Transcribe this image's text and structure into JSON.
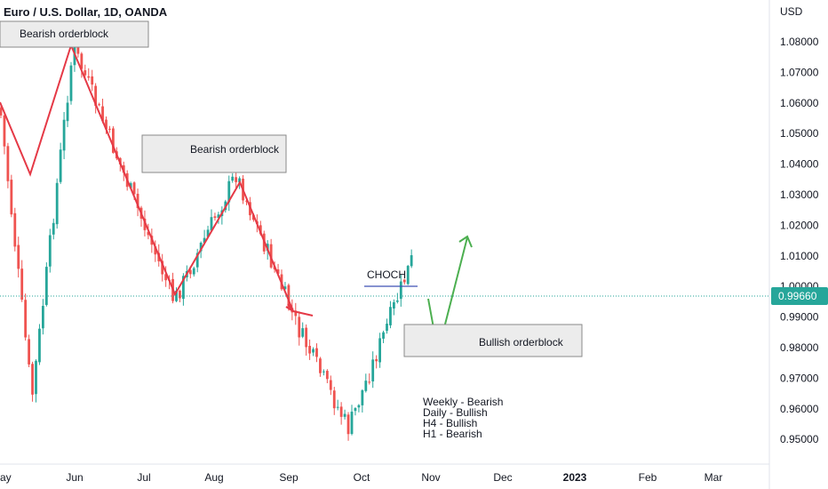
{
  "header": {
    "title": "Euro / U.S. Dollar, 1D, OANDA"
  },
  "colors": {
    "up": "#26a69a",
    "down": "#ef5350",
    "zigzag": "#e53946",
    "projection": "#4caf50",
    "choch": "#3f51b5",
    "price_line": "#26a69a",
    "box_fill": "#ececec",
    "box_border": "#8a8a8a"
  },
  "chart_data": {
    "type": "candlestick",
    "currency_label": "USD",
    "current_price": "0.99660",
    "y_ticks": [
      "1.08000",
      "1.07000",
      "1.06000",
      "1.05000",
      "1.04000",
      "1.03000",
      "1.02000",
      "1.01000",
      "1.00000",
      "0.99000",
      "0.98000",
      "0.97000",
      "0.96000",
      "0.95000"
    ],
    "x_ticks": [
      {
        "label": "ay",
        "bold": false
      },
      {
        "label": "Jun",
        "bold": false
      },
      {
        "label": "Jul",
        "bold": false
      },
      {
        "label": "Aug",
        "bold": false
      },
      {
        "label": "Sep",
        "bold": false
      },
      {
        "label": "Oct",
        "bold": false
      },
      {
        "label": "Nov",
        "bold": false
      },
      {
        "label": "Dec",
        "bold": false
      },
      {
        "label": "2023",
        "bold": true
      },
      {
        "label": "Feb",
        "bold": false
      },
      {
        "label": "Mar",
        "bold": false
      }
    ],
    "ylim": [
      0.9425,
      1.0935
    ],
    "key_points": [
      {
        "date": "2022-05-13",
        "price": 0.9635
      },
      {
        "date": "2022-05-31",
        "price": 1.0786
      },
      {
        "date": "2022-07-14",
        "price": 0.9952
      },
      {
        "date": "2022-08-10",
        "price": 1.0368
      },
      {
        "date": "2022-09-06",
        "price": 0.9864
      },
      {
        "date": "2022-09-28",
        "price": 0.9535
      },
      {
        "date": "2022-10-26",
        "price": 1.0094
      }
    ],
    "annotations": {
      "bearish_ob_1": "Bearish orderblock",
      "bearish_ob_2": "Bearish orderblock",
      "bullish_ob": "Bullish orderblock",
      "choch": "CHOCH",
      "bias": [
        "Weekly - Bearish",
        "Daily - Bullish",
        "H4 - Bullish",
        "H1 - Bearish"
      ]
    }
  }
}
